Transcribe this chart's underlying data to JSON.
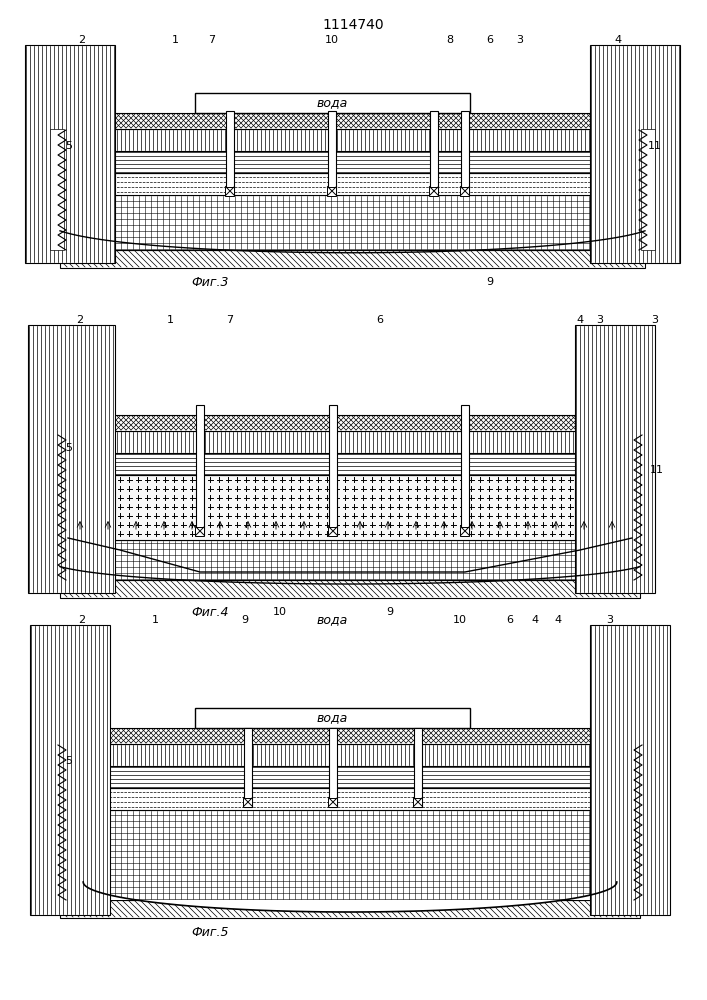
{
  "title": "1114740",
  "fig3_label": "Фиг.3",
  "fig4_label": "Фиг.4",
  "fig5_label": "Фиг.5",
  "voda_label": "вода",
  "bg_color": "#ffffff"
}
